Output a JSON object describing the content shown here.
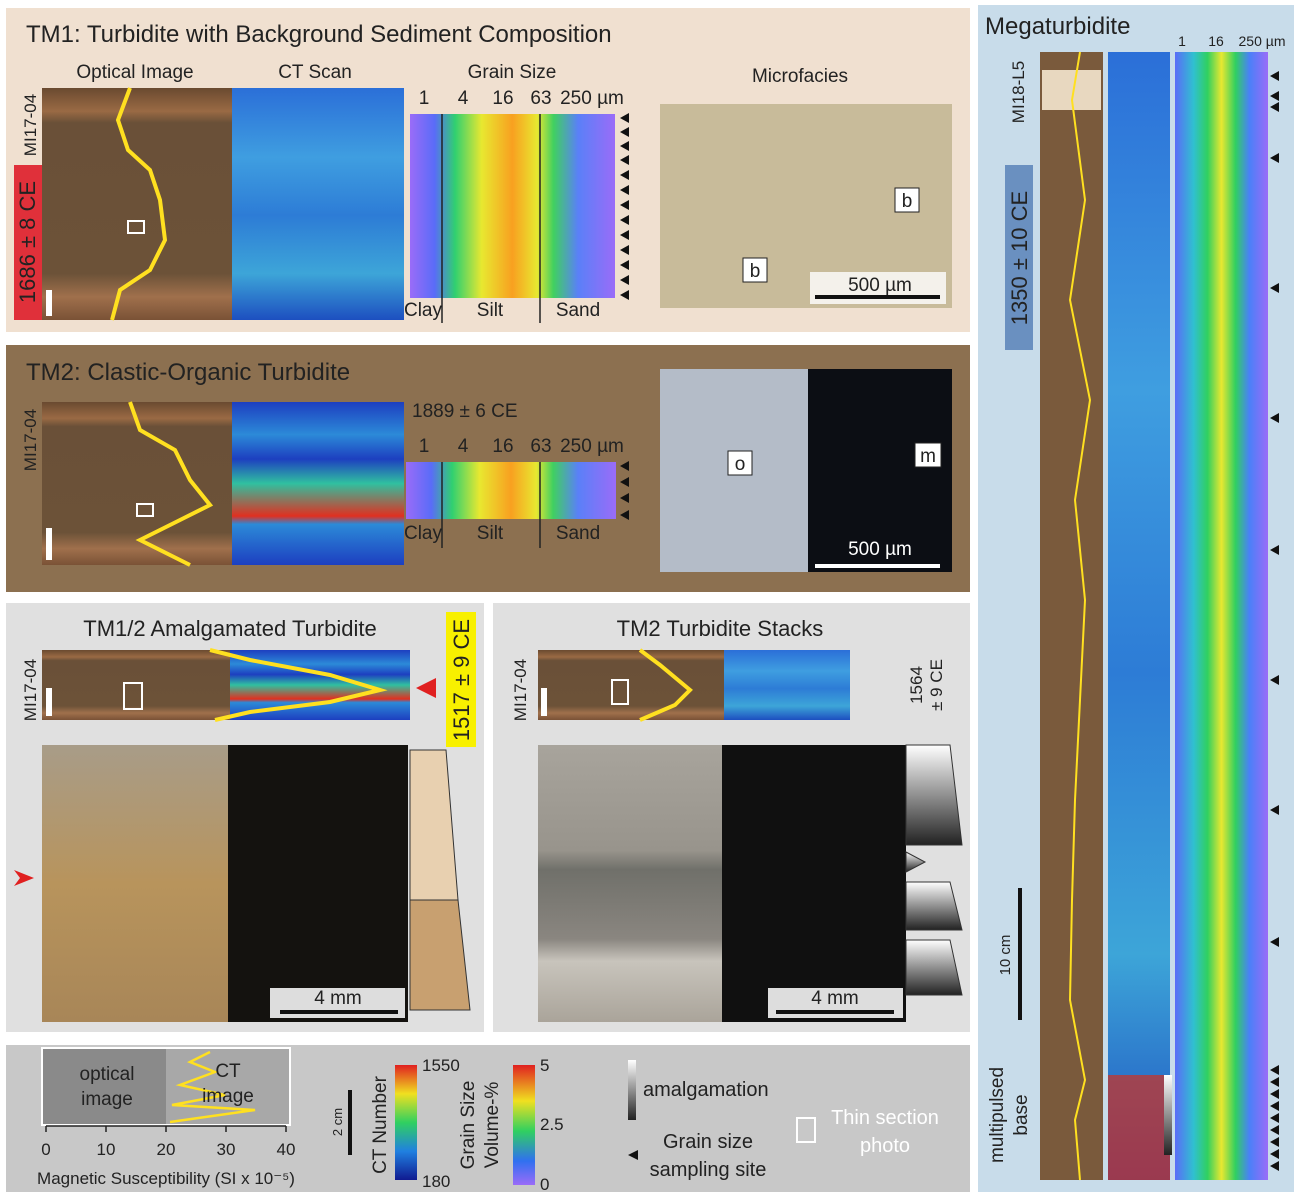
{
  "tm1": {
    "title": "TM1: Turbidite with Background Sediment Composition",
    "headers": [
      "Optical Image",
      "CT Scan",
      "Grain Size",
      "Microfacies"
    ],
    "core": "MI17-04",
    "age": "1686 ± 8 CE",
    "grain_ticks": [
      "1",
      "4",
      "16",
      "63",
      "250 µm"
    ],
    "fractions": [
      "Clay",
      "Silt",
      "Sand"
    ],
    "labels": [
      "b",
      "b"
    ],
    "scale": "500 µm"
  },
  "tm2": {
    "title": "TM2: Clastic-Organic Turbidite",
    "core": "MI17-04",
    "age": "1889  ± 6 CE",
    "grain_ticks": [
      "1",
      "4",
      "16",
      "63",
      "250 µm"
    ],
    "fractions": [
      "Clay",
      "Silt",
      "Sand"
    ],
    "labels": [
      "o",
      "m"
    ],
    "scale": "500 µm"
  },
  "tm12": {
    "title": "TM1/2 Amalgamated Turbidite",
    "core": "MI17-04",
    "age": "1517 ± 9 CE",
    "scale": "4 mm"
  },
  "stacks": {
    "title": "TM2 Turbidite Stacks",
    "core": "MI17-04",
    "age": [
      "1564",
      "± 9 CE"
    ],
    "scale": "4 mm"
  },
  "legend": {
    "optical": [
      "optical",
      "image"
    ],
    "ct": [
      "CT",
      "image"
    ],
    "ms_ticks": [
      0,
      10,
      20,
      30,
      40
    ],
    "ms_title": "Magnetic Susceptibility (SI x 10⁻⁵)",
    "length_scale": "2 cm",
    "ct_title": "CT Number",
    "ct_range": [
      1550,
      180
    ],
    "gs_title": [
      "Grain Size",
      "Volume-%"
    ],
    "gs_ticks": [
      5,
      2.5,
      0
    ],
    "amalgamation": "amalgamation",
    "sampling": [
      "Grain size",
      "sampling site"
    ],
    "thin": [
      "Thin section",
      "photo"
    ]
  },
  "mega": {
    "title": "Megaturbidite",
    "grain_ticks": [
      "1",
      "16",
      "250 µm"
    ],
    "core": "MI18-L5",
    "age": "1350 ± 10 CE",
    "scale": "10 cm",
    "base": [
      "multipulsed",
      "base"
    ]
  }
}
